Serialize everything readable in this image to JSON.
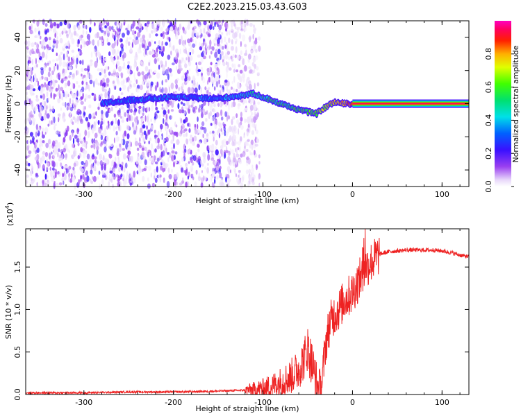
{
  "title": "C2E2.2023.215.03.43.G03",
  "colors": {
    "spectrogram_low": "#8a2be2",
    "snr_line": "#ee2222",
    "axes": "#000000"
  },
  "chart_data": [
    {
      "type": "heatmap",
      "xlabel": "Height of straight line (km)",
      "ylabel": "Frequency (Hz)",
      "xlim": [
        -365,
        130
      ],
      "ylim": [
        -50,
        50
      ],
      "xticks": [
        -300,
        -200,
        -100,
        0,
        100
      ],
      "yticks": [
        -40,
        -20,
        0,
        20,
        40
      ],
      "colorbar": {
        "label": "Normalized spectral amplitude",
        "range": [
          0,
          1
        ],
        "ticks": [
          "0.0",
          "0.2",
          "0.4",
          "0.6",
          "0.8"
        ],
        "colormap": "rainbow (white-purple-blue-cyan-green-yellow-red-magenta)"
      },
      "signal_track": {
        "description_points_x": [
          -280,
          -250,
          -200,
          -150,
          -110,
          -90,
          -70,
          -50,
          -40,
          -30,
          -20,
          -10,
          0,
          130
        ],
        "frequency_hz": [
          0,
          2,
          4,
          3,
          6,
          2,
          -2,
          -5,
          -6,
          -2,
          1,
          0,
          0,
          0
        ],
        "amplitude": [
          0.3,
          0.35,
          0.35,
          0.35,
          0.45,
          0.5,
          0.55,
          0.6,
          0.65,
          0.7,
          0.75,
          0.8,
          0.9,
          0.95
        ]
      },
      "noise_region_x": [
        -365,
        -110
      ]
    },
    {
      "type": "line",
      "xlabel": "Height of straight line (km)",
      "ylabel": "SNR (10 * v/v)",
      "y_multiplier_label": "(x10",
      "y_multiplier_exp": "4",
      "y_multiplier_close": ")",
      "xlim": [
        -365,
        130
      ],
      "ylim": [
        0,
        1.95
      ],
      "xticks": [
        -300,
        -200,
        -100,
        0,
        100
      ],
      "yticks": [
        "0.0",
        "0.5",
        "1.0",
        "1.5"
      ],
      "series": [
        {
          "x": [
            -365,
            -300,
            -250,
            -200,
            -150,
            -120,
            -100,
            -90,
            -80,
            -70,
            -60,
            -55,
            -50,
            -45,
            -40,
            -35,
            -30,
            -25,
            -20,
            -15,
            -10,
            -5,
            0,
            5,
            10,
            15,
            20,
            25,
            30,
            40,
            50,
            60,
            70,
            80,
            90,
            100,
            110,
            120,
            130
          ],
          "y": [
            0.02,
            0.02,
            0.03,
            0.03,
            0.04,
            0.05,
            0.07,
            0.1,
            0.15,
            0.2,
            0.3,
            0.4,
            0.55,
            0.35,
            0.1,
            0.05,
            0.6,
            0.85,
            0.95,
            1.0,
            1.1,
            1.15,
            1.2,
            1.3,
            1.4,
            1.5,
            1.55,
            1.6,
            1.65,
            1.68,
            1.69,
            1.7,
            1.7,
            1.7,
            1.7,
            1.69,
            1.67,
            1.64,
            1.62
          ]
        }
      ]
    }
  ]
}
